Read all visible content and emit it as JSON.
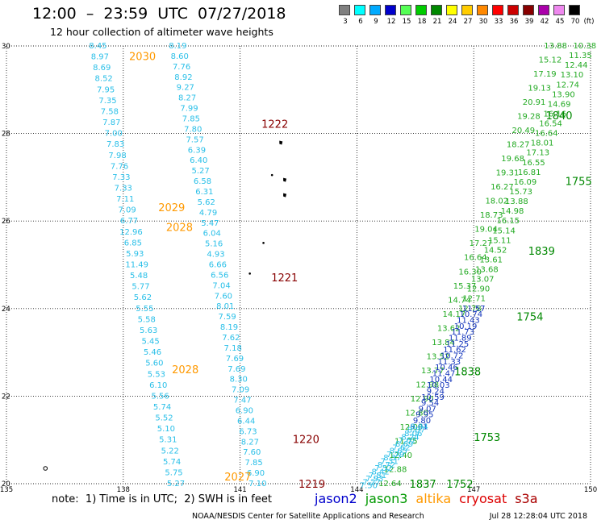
{
  "header": {
    "title": "12:00  –  23:59  UTC  07/27/2018",
    "subtitle": "12 hour collection of altimeter wave heights"
  },
  "scale": {
    "unit": "(ft)",
    "entries": [
      {
        "label": "3",
        "color": "#808080"
      },
      {
        "label": "6",
        "color": "#00ffff"
      },
      {
        "label": "9",
        "color": "#00aaff"
      },
      {
        "label": "12",
        "color": "#0000cc"
      },
      {
        "label": "15",
        "color": "#55ff55"
      },
      {
        "label": "18",
        "color": "#00cc00"
      },
      {
        "label": "21",
        "color": "#008800"
      },
      {
        "label": "24",
        "color": "#ffff00"
      },
      {
        "label": "27",
        "color": "#ffcc00"
      },
      {
        "label": "30",
        "color": "#ff8800"
      },
      {
        "label": "33",
        "color": "#ff0000"
      },
      {
        "label": "36",
        "color": "#cc0000"
      },
      {
        "label": "39",
        "color": "#880000"
      },
      {
        "label": "42",
        "color": "#aa00aa"
      },
      {
        "label": "45",
        "color": "#ee88ee"
      },
      {
        "label": "70",
        "color": "#000000"
      }
    ]
  },
  "map": {
    "lon_range": [
      135,
      150
    ],
    "lat_range": [
      20,
      30
    ],
    "lon_ticks": [
      "135",
      "138",
      "141",
      "144",
      "147",
      "150"
    ],
    "lat_ticks": [
      "30",
      "28",
      "26",
      "24",
      "22",
      "20"
    ],
    "passes": [
      {
        "satellite": "s3a",
        "color": "#29bfe8",
        "lon": [
          137.35,
          139.35
        ],
        "lat": [
          30.0,
          20.0
        ],
        "values": [
          "8.45",
          "8.97",
          "8.69",
          "8.52",
          "7.95",
          "7.35",
          "7.58",
          "7.87",
          "7.00",
          "7.83",
          "7.98",
          "7.76",
          "7.33",
          "7.33",
          "7.11",
          "7.09",
          "6.77",
          "12.96",
          "6.85",
          "5.93",
          "11.49",
          "5.48",
          "5.77",
          "5.62",
          "5.55",
          "5.58",
          "5.63",
          "5.45",
          "5.46",
          "5.60",
          "5.53",
          "6.10",
          "5.56",
          "5.74",
          "5.52",
          "5.10",
          "5.31",
          "5.22",
          "5.74",
          "5.75",
          "5.27"
        ]
      },
      {
        "satellite": "s3a",
        "color": "#29bfe8",
        "lon": [
          139.4,
          141.45
        ],
        "lat": [
          30.0,
          20.0
        ],
        "values": [
          "8.19",
          "8.60",
          "7.76",
          "8.92",
          "9.27",
          "8.27",
          "7.99",
          "7.85",
          "7.80",
          "7.57",
          "6.39",
          "6.40",
          "5.27",
          "6.58",
          "6.31",
          "5.62",
          "4.79",
          "5.47",
          "6.04",
          "5.16",
          "4.93",
          "6.66",
          "6.56",
          "7.04",
          "7.60",
          "8.01",
          "7.59",
          "8.19",
          "7.62",
          "7.18",
          "7.69",
          "7.69",
          "8.30",
          "7.09",
          "7.47",
          "6.90",
          "6.44",
          "6.73",
          "8.27",
          "7.60",
          "7.85",
          "6.90",
          "7.10"
        ]
      },
      {
        "satellite": "jason3",
        "color": "#22aa22",
        "lon": [
          149.1,
          144.85
        ],
        "lat": [
          30.0,
          20.0
        ],
        "values": [
          "13.88",
          "15.12",
          "17.19",
          "19.13",
          "20.91",
          "19.28",
          "20.49",
          "18.27",
          "19.68",
          "19.31",
          "16.27",
          "18.02",
          "18.73",
          "19.04",
          "17.27",
          "16.64",
          "16.30",
          "15.37",
          "14.74",
          "14.17",
          "13.62",
          "13.84",
          "13.52",
          "13.77",
          "12.98",
          "12.90",
          "12.80",
          "12.09",
          "11.75",
          "12.40",
          "12.88",
          "12.64"
        ]
      },
      {
        "satellite": "jason3",
        "color": "#22aa22",
        "lon": [
          149.85,
          146.9
        ],
        "lat": [
          30.0,
          24.0
        ],
        "values": [
          "10.38",
          "11.35",
          "12.44",
          "13.10",
          "12.74",
          "13.90",
          "14.69",
          "16.16",
          "16.54",
          "16.64",
          "18.01",
          "17.13",
          "16.55",
          "16.81",
          "16.09",
          "15.73",
          "13.88",
          "14.98",
          "16.15",
          "15.14",
          "15.11",
          "14.52",
          "13.61",
          "13.68",
          "13.07",
          "12.90",
          "12.71",
          "12.78"
        ]
      },
      {
        "satellite": "jason2",
        "color": "#1133bb",
        "lon": [
          147.0,
          145.6
        ],
        "lat": [
          24.0,
          21.3
        ],
        "values": [
          "11.57",
          "10.74",
          "11.43",
          "10.19",
          "11.73",
          "11.89",
          "11.25",
          "11.62",
          "10.72",
          "11.33",
          "10.46",
          "11.47",
          "10.44",
          "10.03",
          "9.24",
          "10.59",
          "9.54",
          "9.07",
          "9.95",
          "9.80",
          "9.01"
        ]
      },
      {
        "satellite": "s3a",
        "color": "#29bfe8",
        "lon": [
          145.6,
          144.3
        ],
        "lat": [
          21.3,
          19.95
        ],
        "values": [
          "8.84",
          "8.87",
          "8.06",
          "8.24",
          "7.62",
          "8.69",
          "7.62",
          "8.65",
          "7.79",
          "8.37",
          "7.31",
          "8.72",
          "7.52",
          "8.42",
          "7.81",
          "7.93",
          "7.27",
          "7.50"
        ]
      }
    ],
    "pass_labels": [
      {
        "text": "2030",
        "lon": 138.15,
        "lat": 29.75,
        "color": "#ff9900"
      },
      {
        "text": "2029",
        "lon": 138.9,
        "lat": 26.3,
        "color": "#ff9900"
      },
      {
        "text": "2028",
        "lon": 139.1,
        "lat": 25.85,
        "color": "#ff9900"
      },
      {
        "text": "2028",
        "lon": 139.25,
        "lat": 22.6,
        "color": "#ff9900"
      },
      {
        "text": "2027",
        "lon": 140.6,
        "lat": 20.15,
        "color": "#ff9900"
      },
      {
        "text": "1222",
        "lon": 141.55,
        "lat": 28.2,
        "color": "#880000"
      },
      {
        "text": "1221",
        "lon": 141.8,
        "lat": 24.7,
        "color": "#880000"
      },
      {
        "text": "1220",
        "lon": 142.35,
        "lat": 21.0,
        "color": "#880000"
      },
      {
        "text": "1219",
        "lon": 142.5,
        "lat": 19.98,
        "color": "#880000"
      },
      {
        "text": "1840",
        "lon": 148.85,
        "lat": 28.4,
        "color": "#008800"
      },
      {
        "text": "1755",
        "lon": 149.35,
        "lat": 26.9,
        "color": "#008800"
      },
      {
        "text": "1839",
        "lon": 148.4,
        "lat": 25.3,
        "color": "#008800"
      },
      {
        "text": "1754",
        "lon": 148.1,
        "lat": 23.8,
        "color": "#008800"
      },
      {
        "text": "1838",
        "lon": 146.5,
        "lat": 22.55,
        "color": "#008800"
      },
      {
        "text": "1753",
        "lon": 147.0,
        "lat": 21.05,
        "color": "#008800"
      },
      {
        "text": "1837",
        "lon": 145.35,
        "lat": 19.98,
        "color": "#008800"
      },
      {
        "text": "1752",
        "lon": 146.3,
        "lat": 19.98,
        "color": "#008800"
      }
    ],
    "islands": [
      {
        "lon": 142.05,
        "lat": 27.8,
        "shape": "islet"
      },
      {
        "lon": 141.82,
        "lat": 27.05,
        "shape": "dot"
      },
      {
        "lon": 142.15,
        "lat": 26.95,
        "shape": "islet"
      },
      {
        "lon": 142.15,
        "lat": 26.6,
        "shape": "islet"
      },
      {
        "lon": 141.6,
        "lat": 25.5,
        "shape": "dot"
      },
      {
        "lon": 141.25,
        "lat": 24.8,
        "shape": "dot"
      },
      {
        "lon": 136.0,
        "lat": 20.35,
        "shape": "ring"
      }
    ]
  },
  "note": "note:  1) Time is in UTC;  2) SWH is in feet",
  "legend": [
    {
      "name": "jason2",
      "color": "#0000cc"
    },
    {
      "name": "jason3",
      "color": "#009900"
    },
    {
      "name": "altika",
      "color": "#ff9900"
    },
    {
      "name": "cryosat",
      "color": "#dd0000"
    },
    {
      "name": "s3a",
      "color": "#aa0000"
    }
  ],
  "footer": {
    "source": "NOAA/NESDIS  Center  for  Satellite  Applications  and  Research",
    "timestamp": "Jul 28 12:28:04 UTC 2018"
  }
}
